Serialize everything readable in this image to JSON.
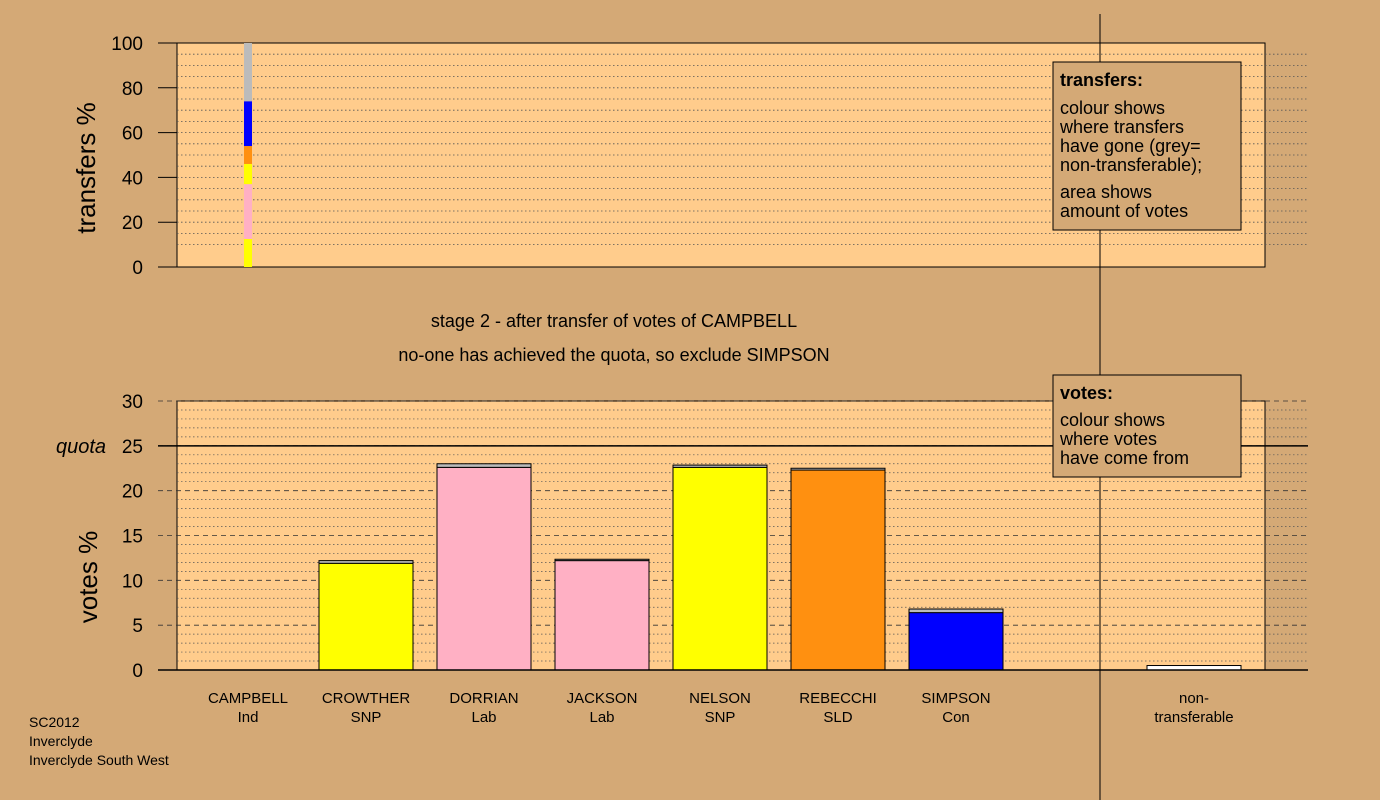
{
  "colors": {
    "background": "#D4A976",
    "plot_area": "#FFCC8C",
    "Ind": "#BBBBBB",
    "SNP": "#FFFF00",
    "Lab": "#FFB0C4",
    "SLD": "#FF9010",
    "Con": "#0000FF",
    "non_transferable": "#FFFFFF"
  },
  "stage": {
    "line1": "stage 2 - after transfer of votes of CAMPBELL",
    "line2": "no-one has achieved the quota, so exclude SIMPSON"
  },
  "legends": {
    "transfers": {
      "title": "transfers:",
      "lines_a": [
        "colour shows",
        "where transfers",
        "have gone (grey=",
        "non-transferable);"
      ],
      "lines_b": [
        "area shows",
        "amount of votes"
      ]
    },
    "votes": {
      "title": "votes:",
      "lines": [
        "colour shows",
        "where votes",
        "have come from"
      ]
    }
  },
  "footer": [
    "SC2012",
    "Inverclyde",
    "Inverclyde South West"
  ],
  "chart_data": [
    {
      "type": "bar",
      "subtype": "stacked-transfer-column",
      "ylabel": "transfers %",
      "ylim": [
        0,
        100
      ],
      "yticks": [
        0,
        20,
        40,
        60,
        80,
        100
      ],
      "grid": "dotted",
      "source_candidate": "CAMPBELL",
      "segments": [
        {
          "party": "SNP",
          "from": 0,
          "to": 12.5
        },
        {
          "party": "Lab",
          "from": 12.5,
          "to": 37
        },
        {
          "party": "SNP",
          "from": 37,
          "to": 46
        },
        {
          "party": "SLD",
          "from": 46,
          "to": 54
        },
        {
          "party": "Con",
          "from": 54,
          "to": 74
        },
        {
          "party": "Ind",
          "from": 74,
          "to": 100
        }
      ]
    },
    {
      "type": "bar",
      "ylabel": "votes %",
      "ylim": [
        0,
        30
      ],
      "yticks": [
        0,
        5,
        10,
        15,
        20,
        25,
        30
      ],
      "quota": 25,
      "quota_label": "quota",
      "grid": "dashed-and-dotted",
      "candidates": [
        {
          "name": "CAMPBELL",
          "party": "Ind",
          "base": 0,
          "transfer": 0
        },
        {
          "name": "CROWTHER",
          "party": "SNP",
          "base": 11.9,
          "transfer": 0.3
        },
        {
          "name": "DORRIAN",
          "party": "Lab",
          "base": 22.6,
          "transfer": 0.4
        },
        {
          "name": "JACKSON",
          "party": "Lab",
          "base": 12.2,
          "transfer": 0.15
        },
        {
          "name": "NELSON",
          "party": "SNP",
          "base": 22.6,
          "transfer": 0.25
        },
        {
          "name": "REBECCHI",
          "party": "SLD",
          "base": 22.3,
          "transfer": 0.2
        },
        {
          "name": "SIMPSON",
          "party": "Con",
          "base": 6.4,
          "transfer": 0.4
        }
      ],
      "non_transferable": {
        "label_line1": "non-",
        "label_line2": "transferable",
        "value": 0.5
      }
    }
  ]
}
